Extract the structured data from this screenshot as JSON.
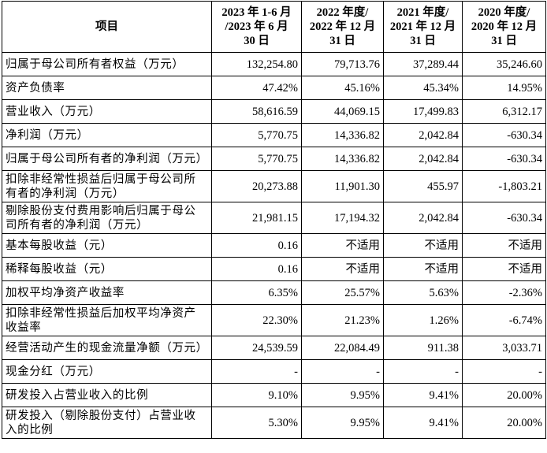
{
  "table": {
    "header": [
      [
        "项目"
      ],
      [
        "2023 年 1-6 月",
        "/2023 年 6 月",
        "30 日"
      ],
      [
        "2022 年度/",
        "2022 年 12 月",
        "31 日"
      ],
      [
        "2021 年度/",
        "2021 年 12 月",
        "31 日"
      ],
      [
        "2020 年度/",
        "2020 年 12 月",
        "31 日"
      ]
    ],
    "rows": [
      {
        "label": [
          "归属于母公司所有者权益（万元）"
        ],
        "values": [
          "132,254.80",
          "79,713.76",
          "37,289.44",
          "35,246.60"
        ]
      },
      {
        "label": [
          "资产负债率"
        ],
        "values": [
          "47.42%",
          "45.16%",
          "45.34%",
          "14.95%"
        ]
      },
      {
        "label": [
          "营业收入（万元）"
        ],
        "values": [
          "58,616.59",
          "44,069.15",
          "17,499.83",
          "6,312.17"
        ]
      },
      {
        "label": [
          "净利润（万元）"
        ],
        "values": [
          "5,770.75",
          "14,336.82",
          "2,042.84",
          "-630.34"
        ]
      },
      {
        "label": [
          "归属于母公司所有者的净利润（万元）"
        ],
        "values": [
          "5,770.75",
          "14,336.82",
          "2,042.84",
          "-630.34"
        ]
      },
      {
        "label": [
          "扣除非经常性损益后归属于母公司所",
          "有者的净利润（万元）"
        ],
        "values": [
          "20,273.88",
          "11,901.30",
          "455.97",
          "-1,803.21"
        ]
      },
      {
        "label": [
          "剔除股份支付费用影响后归属于母公",
          "司所有者的净利润（万元）"
        ],
        "values": [
          "21,981.15",
          "17,194.32",
          "2,042.84",
          "-630.34"
        ]
      },
      {
        "label": [
          "基本每股收益（元）"
        ],
        "values": [
          "0.16",
          "不适用",
          "不适用",
          "不适用"
        ]
      },
      {
        "label": [
          "稀释每股收益（元）"
        ],
        "values": [
          "0.16",
          "不适用",
          "不适用",
          "不适用"
        ]
      },
      {
        "label": [
          "加权平均净资产收益率"
        ],
        "values": [
          "6.35%",
          "25.57%",
          "5.63%",
          "-2.36%"
        ]
      },
      {
        "label": [
          "扣除非经常性损益后加权平均净资产",
          "收益率"
        ],
        "values": [
          "22.30%",
          "21.23%",
          "1.26%",
          "-6.74%"
        ]
      },
      {
        "label": [
          "经营活动产生的现金流量净额（万元）"
        ],
        "values": [
          "24,539.59",
          "22,084.49",
          "911.38",
          "3,033.71"
        ]
      },
      {
        "label": [
          "现金分红（万元）"
        ],
        "values": [
          "-",
          "-",
          "-",
          "-"
        ]
      },
      {
        "label": [
          "研发投入占营业收入的比例"
        ],
        "values": [
          "9.10%",
          "9.95%",
          "9.41%",
          "20.00%"
        ]
      },
      {
        "label": [
          "研发投入（剔除股份支付）占营业收",
          "入的比例"
        ],
        "values": [
          "5.30%",
          "9.95%",
          "9.41%",
          "20.00%"
        ]
      }
    ]
  }
}
